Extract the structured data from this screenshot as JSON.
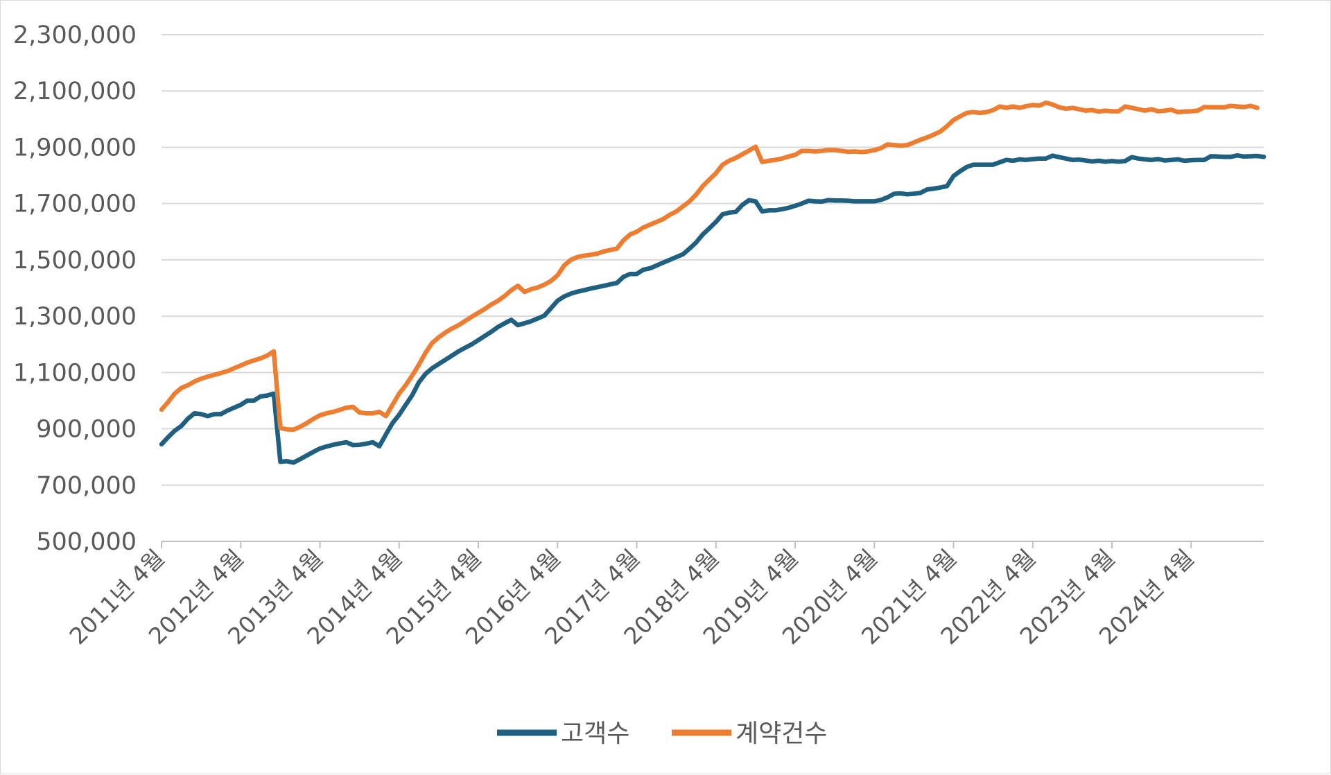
{
  "chart_data": {
    "type": "line",
    "title": "",
    "xlabel": "",
    "ylabel": "",
    "ylim": [
      500000,
      2300000
    ],
    "y_ticks": [
      "2,300,000",
      "2,100,000",
      "1,900,000",
      "1,700,000",
      "1,500,000",
      "1,300,000",
      "1,100,000",
      "900,000",
      "700,000",
      "500,000"
    ],
    "y_tick_values": [
      2300000,
      2100000,
      1900000,
      1700000,
      1500000,
      1300000,
      1100000,
      900000,
      700000,
      500000
    ],
    "x_tick_labels": [
      "2011년 4월",
      "2012년 4월",
      "2013년 4월",
      "2014년 4월",
      "2015년 4월",
      "2016년 4월",
      "2017년 4월",
      "2018년 4월",
      "2019년 4월",
      "2020년 4월",
      "2021년 4월",
      "2022년 4월",
      "2023년 4월",
      "2024년 4월"
    ],
    "x_start": "2011-04",
    "x_end": "2025-01",
    "grid": true,
    "legend_position": "bottom",
    "series": [
      {
        "name": "고객수",
        "color": "#1f5f7f",
        "values": [
          845000,
          870000,
          893000,
          910000,
          936000,
          955000,
          952000,
          945000,
          952000,
          952000,
          965000,
          975000,
          985000,
          1000000,
          1000000,
          1015000,
          1018000,
          1025000,
          783000,
          785000,
          780000,
          792000,
          805000,
          818000,
          830000,
          837000,
          843000,
          848000,
          852000,
          842000,
          843000,
          847000,
          852000,
          838000,
          880000,
          920000,
          950000,
          985000,
          1020000,
          1065000,
          1095000,
          1115000,
          1130000,
          1145000,
          1160000,
          1175000,
          1188000,
          1200000,
          1215000,
          1230000,
          1245000,
          1262000,
          1275000,
          1287000,
          1268000,
          1275000,
          1282000,
          1292000,
          1302000,
          1328000,
          1355000,
          1370000,
          1380000,
          1387000,
          1392000,
          1398000,
          1403000,
          1408000,
          1413000,
          1418000,
          1440000,
          1450000,
          1450000,
          1465000,
          1470000,
          1480000,
          1490000,
          1500000,
          1510000,
          1520000,
          1540000,
          1562000,
          1590000,
          1612000,
          1635000,
          1662000,
          1668000,
          1670000,
          1695000,
          1712000,
          1708000,
          1672000,
          1676000,
          1676000,
          1680000,
          1685000,
          1692000,
          1700000,
          1710000,
          1708000,
          1707000,
          1712000,
          1711000,
          1711000,
          1710000,
          1708000,
          1708000,
          1708000,
          1708000,
          1713000,
          1722000,
          1735000,
          1736000,
          1733000,
          1735000,
          1738000,
          1750000,
          1753000,
          1757000,
          1762000,
          1798000,
          1815000,
          1830000,
          1838000,
          1838000,
          1838000,
          1838000,
          1847000,
          1855000,
          1852000,
          1857000,
          1855000,
          1858000,
          1860000,
          1860000,
          1870000,
          1865000,
          1860000,
          1855000,
          1856000,
          1853000,
          1850000,
          1852000,
          1849000,
          1851000,
          1849000,
          1851000,
          1865000,
          1860000,
          1857000,
          1855000,
          1858000,
          1853000,
          1855000,
          1857000,
          1852000,
          1854000,
          1855000,
          1855000,
          1868000,
          1867000,
          1866000,
          1866000,
          1871000,
          1867000,
          1868000,
          1869000,
          1866000
        ]
      },
      {
        "name": "계약건수",
        "color": "#ed7d31",
        "values": [
          968000,
          995000,
          1025000,
          1045000,
          1055000,
          1068000,
          1078000,
          1085000,
          1092000,
          1098000,
          1105000,
          1115000,
          1125000,
          1135000,
          1143000,
          1150000,
          1160000,
          1175000,
          903000,
          898000,
          897000,
          907000,
          920000,
          935000,
          948000,
          955000,
          960000,
          967000,
          975000,
          978000,
          958000,
          955000,
          955000,
          960000,
          945000,
          985000,
          1025000,
          1055000,
          1090000,
          1128000,
          1170000,
          1205000,
          1225000,
          1242000,
          1256000,
          1268000,
          1283000,
          1298000,
          1312000,
          1326000,
          1342000,
          1355000,
          1372000,
          1392000,
          1408000,
          1386000,
          1396000,
          1402000,
          1412000,
          1425000,
          1445000,
          1480000,
          1500000,
          1510000,
          1515000,
          1518000,
          1522000,
          1530000,
          1535000,
          1540000,
          1570000,
          1590000,
          1600000,
          1615000,
          1625000,
          1635000,
          1645000,
          1660000,
          1672000,
          1690000,
          1708000,
          1732000,
          1762000,
          1785000,
          1808000,
          1838000,
          1852000,
          1862000,
          1875000,
          1888000,
          1902000,
          1848000,
          1852000,
          1855000,
          1860000,
          1867000,
          1873000,
          1887000,
          1887000,
          1885000,
          1887000,
          1890000,
          1890000,
          1887000,
          1884000,
          1885000,
          1883000,
          1885000,
          1890000,
          1897000,
          1910000,
          1908000,
          1906000,
          1908000,
          1917000,
          1927000,
          1935000,
          1945000,
          1956000,
          1975000,
          1997000,
          2010000,
          2022000,
          2025000,
          2022000,
          2025000,
          2032000,
          2045000,
          2040000,
          2045000,
          2040000,
          2046000,
          2050000,
          2048000,
          2058000,
          2052000,
          2042000,
          2037000,
          2040000,
          2035000,
          2030000,
          2032000,
          2027000,
          2030000,
          2028000,
          2028000,
          2045000,
          2040000,
          2035000,
          2030000,
          2035000,
          2028000,
          2030000,
          2033000,
          2025000,
          2027000,
          2028000,
          2030000,
          2043000,
          2042000,
          2042000,
          2042000,
          2047000,
          2045000,
          2043000,
          2047000,
          2040000
        ]
      }
    ]
  }
}
